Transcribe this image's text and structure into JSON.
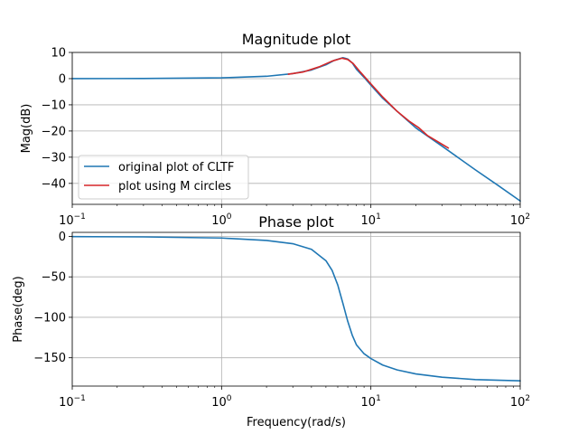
{
  "chart_data": [
    {
      "type": "line",
      "title": "Magnitude plot",
      "xlabel": "",
      "ylabel": "Mag(dB)",
      "xscale": "log",
      "xlim": [
        0.1,
        100
      ],
      "ylim": [
        -48,
        10
      ],
      "grid": true,
      "legend_placement": "lower-left",
      "x_ticks": [
        {
          "value": 0.1,
          "base": "10",
          "exp": "−1"
        },
        {
          "value": 1,
          "base": "10",
          "exp": "0"
        },
        {
          "value": 10,
          "base": "10",
          "exp": "1"
        },
        {
          "value": 100,
          "base": "10",
          "exp": "2"
        }
      ],
      "y_ticks": [
        {
          "value": 10,
          "label": "10"
        },
        {
          "value": 0,
          "label": "0"
        },
        {
          "value": -10,
          "label": "−10"
        },
        {
          "value": -20,
          "label": "−20"
        },
        {
          "value": -30,
          "label": "−30"
        },
        {
          "value": -40,
          "label": "−40"
        }
      ],
      "series": [
        {
          "name": "original plot of CLTF",
          "color": "#1f77b4",
          "x": [
            0.1,
            0.3,
            1,
            2,
            3,
            4,
            5,
            5.7,
            6.5,
            7,
            7.5,
            8,
            9,
            10,
            12,
            15,
            20,
            30,
            50,
            70,
            100
          ],
          "y": [
            0,
            0.05,
            0.3,
            0.9,
            1.9,
            3.3,
            5.3,
            7.0,
            8.0,
            7.5,
            6.0,
            3.6,
            0.5,
            -2.5,
            -7.5,
            -12.5,
            -18.8,
            -25.8,
            -34.8,
            -40.5,
            -46.7
          ]
        },
        {
          "name": "plot using M circles",
          "color": "#d62728",
          "x": [
            2.8,
            3.5,
            4.5,
            5.5,
            6.4,
            7,
            7.6,
            8.5,
            10,
            12,
            15,
            18,
            21,
            24,
            27,
            33
          ],
          "y": [
            1.7,
            2.5,
            4.5,
            6.7,
            7.8,
            7.3,
            5.8,
            2.5,
            -2.0,
            -7.0,
            -12.5,
            -16.2,
            -18.8,
            -21.8,
            -23.5,
            -26.5
          ]
        }
      ]
    },
    {
      "type": "line",
      "title": "Phase plot",
      "xlabel": "Frequency(rad/s)",
      "ylabel": "Phase(deg)",
      "xscale": "log",
      "xlim": [
        0.1,
        100
      ],
      "ylim": [
        -185,
        5
      ],
      "grid": true,
      "x_ticks": [
        {
          "value": 0.1,
          "base": "10",
          "exp": "−1"
        },
        {
          "value": 1,
          "base": "10",
          "exp": "0"
        },
        {
          "value": 10,
          "base": "10",
          "exp": "1"
        },
        {
          "value": 100,
          "base": "10",
          "exp": "2"
        }
      ],
      "y_ticks": [
        {
          "value": 0,
          "label": "0"
        },
        {
          "value": -50,
          "label": "−50"
        },
        {
          "value": -100,
          "label": "−100"
        },
        {
          "value": -150,
          "label": "−150"
        }
      ],
      "series": [
        {
          "color": "#1f77b4",
          "x": [
            0.1,
            0.3,
            1,
            2,
            3,
            4,
            5,
            5.5,
            6,
            6.5,
            7,
            7.5,
            8,
            9,
            10,
            12,
            15,
            20,
            30,
            50,
            100
          ],
          "y": [
            -0.2,
            -0.6,
            -2,
            -5,
            -9,
            -16,
            -30,
            -42,
            -60,
            -83,
            -105,
            -122,
            -134,
            -145,
            -151,
            -159,
            -165,
            -170,
            -174,
            -177,
            -178.5
          ]
        }
      ]
    }
  ]
}
